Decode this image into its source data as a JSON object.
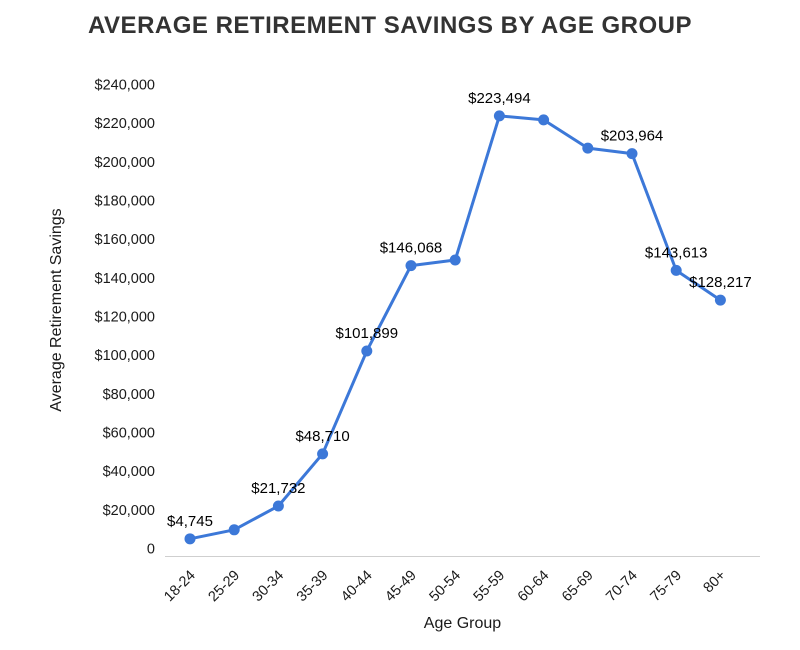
{
  "chart_data": {
    "type": "line",
    "title": "AVERAGE RETIREMENT SAVINGS BY AGE GROUP",
    "xlabel": "Age Group",
    "ylabel": "Average Retirement Savings",
    "categories": [
      "18-24",
      "25-29",
      "30-34",
      "35-39",
      "40-44",
      "45-49",
      "50-54",
      "55-59",
      "60-64",
      "65-69",
      "70-74",
      "75-79",
      "80+"
    ],
    "values": [
      4745,
      9408,
      21732,
      48710,
      101899,
      146068,
      148950,
      223494,
      221452,
      206819,
      203964,
      143613,
      128217
    ],
    "point_labels": [
      "$4,745",
      "",
      "$21,732",
      "$48,710",
      "$101,899",
      "$146,068",
      "",
      "$223,494",
      "",
      "",
      "$203,964",
      "$143,613",
      "$128,217"
    ],
    "ylim": [
      0,
      240000
    ],
    "ytick_step": 20000,
    "ytick_labels": [
      "0",
      "$20,000",
      "$40,000",
      "$60,000",
      "$80,000",
      "$100,000",
      "$120,000",
      "$140,000",
      "$160,000",
      "$180,000",
      "$200,000",
      "$220,000",
      "$240,000"
    ],
    "grid": false,
    "legend": "none",
    "line_color": "#3c78d8",
    "point_color": "#3c78d8",
    "label_color": "#000000",
    "tick_color": "#1a1a1a",
    "axis_line_color": "#cfcfcf"
  }
}
